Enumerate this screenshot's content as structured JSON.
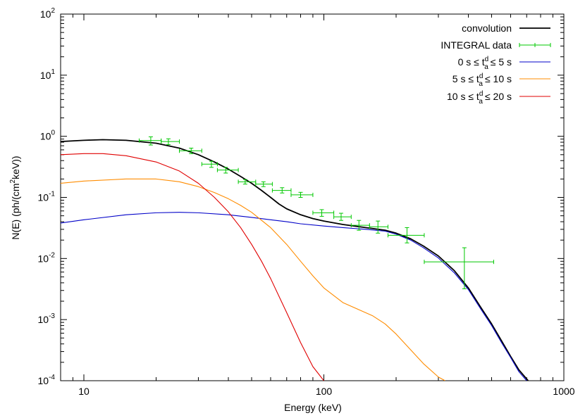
{
  "chart_data": {
    "type": "line",
    "xlabel": "Energy (keV)",
    "ylabel": "N(E) (ph/(cm²keV))",
    "xscale": "log",
    "yscale": "log",
    "xlim": [
      8,
      1000
    ],
    "ylim": [
      0.0001,
      100
    ],
    "grid": false,
    "legend_position": "top-right",
    "x_ticks": [
      {
        "value": 10,
        "label": "10"
      },
      {
        "value": 100,
        "label": "100"
      },
      {
        "value": 1000,
        "label": "1000"
      }
    ],
    "y_ticks": [
      {
        "value": 0.0001,
        "base": "10",
        "exp": "-4"
      },
      {
        "value": 0.001,
        "base": "10",
        "exp": "-3"
      },
      {
        "value": 0.01,
        "base": "10",
        "exp": "-2"
      },
      {
        "value": 0.1,
        "base": "10",
        "exp": "-1"
      },
      {
        "value": 1,
        "base": "10",
        "exp": "0"
      },
      {
        "value": 10,
        "base": "10",
        "exp": "1"
      },
      {
        "value": 100,
        "base": "10",
        "exp": "2"
      }
    ],
    "series": [
      {
        "name": "convolution",
        "color": "#000000",
        "points": [
          [
            8,
            0.82
          ],
          [
            10,
            0.86
          ],
          [
            12,
            0.88
          ],
          [
            15,
            0.86
          ],
          [
            20,
            0.77
          ],
          [
            25,
            0.64
          ],
          [
            30,
            0.5
          ],
          [
            35,
            0.38
          ],
          [
            40,
            0.29
          ],
          [
            45,
            0.22
          ],
          [
            50,
            0.17
          ],
          [
            55,
            0.13
          ],
          [
            60,
            0.1
          ],
          [
            65,
            0.078
          ],
          [
            70,
            0.065
          ],
          [
            80,
            0.052
          ],
          [
            90,
            0.045
          ],
          [
            100,
            0.041
          ],
          [
            120,
            0.036
          ],
          [
            150,
            0.032
          ],
          [
            180,
            0.029
          ],
          [
            200,
            0.026
          ],
          [
            230,
            0.021
          ],
          [
            260,
            0.016
          ],
          [
            300,
            0.011
          ],
          [
            350,
            0.0063
          ],
          [
            400,
            0.0033
          ],
          [
            450,
            0.0016
          ],
          [
            500,
            0.00085
          ],
          [
            550,
            0.00045
          ],
          [
            600,
            0.00025
          ],
          [
            650,
            0.00015
          ],
          [
            710,
            0.0001
          ]
        ]
      },
      {
        "name": "0 s ≤ t_a^d ≤ 5 s",
        "color": "#0000c8",
        "points": [
          [
            8,
            0.038
          ],
          [
            10,
            0.043
          ],
          [
            15,
            0.052
          ],
          [
            20,
            0.056
          ],
          [
            25,
            0.057
          ],
          [
            30,
            0.056
          ],
          [
            40,
            0.052
          ],
          [
            50,
            0.047
          ],
          [
            60,
            0.043
          ],
          [
            70,
            0.04
          ],
          [
            80,
            0.037
          ],
          [
            100,
            0.034
          ],
          [
            120,
            0.032
          ],
          [
            150,
            0.03
          ],
          [
            180,
            0.028
          ],
          [
            200,
            0.025
          ],
          [
            230,
            0.02
          ],
          [
            260,
            0.015
          ],
          [
            300,
            0.0102
          ],
          [
            350,
            0.0058
          ],
          [
            400,
            0.0031
          ],
          [
            450,
            0.0015
          ],
          [
            500,
            0.0008
          ],
          [
            550,
            0.00042
          ],
          [
            600,
            0.00024
          ],
          [
            650,
            0.00014
          ],
          [
            700,
            0.0001
          ]
        ]
      },
      {
        "name": "5 s ≤ t_a^d ≤ 10 s",
        "color": "#ff8c00",
        "points": [
          [
            8,
            0.17
          ],
          [
            10,
            0.185
          ],
          [
            15,
            0.2
          ],
          [
            20,
            0.2
          ],
          [
            25,
            0.18
          ],
          [
            30,
            0.15
          ],
          [
            35,
            0.12
          ],
          [
            40,
            0.095
          ],
          [
            45,
            0.074
          ],
          [
            50,
            0.057
          ],
          [
            60,
            0.032
          ],
          [
            70,
            0.017
          ],
          [
            80,
            0.009
          ],
          [
            90,
            0.0052
          ],
          [
            100,
            0.0033
          ],
          [
            120,
            0.0019
          ],
          [
            140,
            0.00145
          ],
          [
            160,
            0.00115
          ],
          [
            180,
            0.00085
          ],
          [
            200,
            0.00058
          ],
          [
            230,
            0.00032
          ],
          [
            260,
            0.00019
          ],
          [
            300,
            0.000115
          ],
          [
            320,
            0.0001
          ]
        ]
      },
      {
        "name": "10 s ≤ t_a^d ≤ 20 s",
        "color": "#e00000",
        "points": [
          [
            8,
            0.5
          ],
          [
            10,
            0.52
          ],
          [
            12,
            0.52
          ],
          [
            15,
            0.48
          ],
          [
            20,
            0.38
          ],
          [
            25,
            0.27
          ],
          [
            30,
            0.17
          ],
          [
            35,
            0.1
          ],
          [
            40,
            0.058
          ],
          [
            45,
            0.032
          ],
          [
            50,
            0.017
          ],
          [
            55,
            0.009
          ],
          [
            60,
            0.0047
          ],
          [
            70,
            0.0013
          ],
          [
            80,
            0.00042
          ],
          [
            90,
            0.00017
          ],
          [
            100,
            0.0001
          ]
        ]
      },
      {
        "name": "INTEGRAL data",
        "color": "#00c800",
        "kind": "errorbars",
        "points": [
          {
            "x": 19,
            "y": 0.85,
            "xerr": [
              17,
              21
            ],
            "yerr": [
              0.72,
              0.98
            ]
          },
          {
            "x": 22.5,
            "y": 0.82,
            "xerr": [
              21,
              25
            ],
            "yerr": [
              0.73,
              0.91
            ]
          },
          {
            "x": 28,
            "y": 0.58,
            "xerr": [
              25,
              31
            ],
            "yerr": [
              0.52,
              0.64
            ]
          },
          {
            "x": 34,
            "y": 0.35,
            "xerr": [
              31,
              36
            ],
            "yerr": [
              0.31,
              0.39
            ]
          },
          {
            "x": 39,
            "y": 0.28,
            "xerr": [
              36,
              44
            ],
            "yerr": [
              0.25,
              0.31
            ]
          },
          {
            "x": 47,
            "y": 0.18,
            "xerr": [
              44,
              52
            ],
            "yerr": [
              0.165,
              0.196
            ]
          },
          {
            "x": 56,
            "y": 0.165,
            "xerr": [
              52,
              61
            ],
            "yerr": [
              0.15,
              0.18
            ]
          },
          {
            "x": 67,
            "y": 0.13,
            "xerr": [
              61,
              73
            ],
            "yerr": [
              0.118,
              0.144
            ]
          },
          {
            "x": 80,
            "y": 0.11,
            "xerr": [
              73,
              90
            ],
            "yerr": [
              0.1,
              0.121
            ]
          },
          {
            "x": 98,
            "y": 0.056,
            "xerr": [
              90,
              110
            ],
            "yerr": [
              0.049,
              0.063
            ]
          },
          {
            "x": 118,
            "y": 0.048,
            "xerr": [
              110,
              130
            ],
            "yerr": [
              0.042,
              0.055
            ]
          },
          {
            "x": 140,
            "y": 0.035,
            "xerr": [
              130,
              155
            ],
            "yerr": [
              0.029,
              0.042
            ]
          },
          {
            "x": 168,
            "y": 0.033,
            "xerr": [
              155,
              185
            ],
            "yerr": [
              0.026,
              0.041
            ]
          },
          {
            "x": 222,
            "y": 0.024,
            "xerr": [
              185,
              262
            ],
            "yerr": [
              0.018,
              0.032
            ]
          },
          {
            "x": 385,
            "y": 0.0088,
            "xerr": [
              262,
              510
            ],
            "yerr": [
              0.0032,
              0.015
            ]
          }
        ]
      }
    ]
  },
  "legend": [
    {
      "kind": "text",
      "text": "convolution",
      "color": "#000000",
      "style": "line"
    },
    {
      "kind": "text",
      "text": "INTEGRAL data",
      "color": "#00c800",
      "style": "errorbar"
    },
    {
      "kind": "range",
      "pre": "0 s ≤ t",
      "sup": "d",
      "sub": "a",
      "post": "≤ 5 s",
      "color": "#0000c8",
      "style": "line"
    },
    {
      "kind": "range",
      "pre": "5 s ≤ t",
      "sup": "d",
      "sub": "a",
      "post": "≤ 10 s",
      "color": "#ff8c00",
      "style": "line"
    },
    {
      "kind": "range",
      "pre": "10 s ≤ t",
      "sup": "d",
      "sub": "a",
      "post": "≤ 20 s",
      "color": "#e00000",
      "style": "line"
    }
  ],
  "ylabel_parts": {
    "pre": "N(E) (ph/(cm",
    "sup": "2",
    "post": "keV))"
  }
}
